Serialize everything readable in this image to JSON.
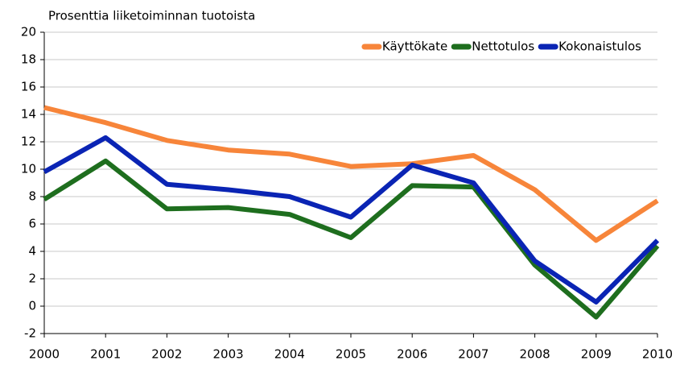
{
  "chart_data": {
    "type": "line",
    "title": "Prosenttia liiketoiminnan tuotoista",
    "categories": [
      "2000",
      "2001",
      "2002",
      "2003",
      "2004",
      "2005",
      "2006",
      "2007",
      "2008",
      "2009",
      "2010"
    ],
    "series": [
      {
        "name": "Käyttökate",
        "color": "#f7853a",
        "values": [
          14.5,
          13.4,
          12.1,
          11.4,
          11.1,
          10.2,
          10.4,
          11.0,
          8.5,
          4.8,
          7.7
        ]
      },
      {
        "name": "Nettotulos",
        "color": "#1e6e1e",
        "values": [
          7.8,
          10.6,
          7.1,
          7.2,
          6.7,
          5.0,
          8.8,
          8.7,
          3.0,
          -0.8,
          4.4
        ]
      },
      {
        "name": "Kokonaistulos",
        "color": "#0a24b4",
        "values": [
          9.8,
          12.3,
          8.9,
          8.5,
          8.0,
          6.5,
          10.3,
          9.0,
          3.3,
          0.3,
          4.8
        ]
      }
    ],
    "ylim": [
      -2,
      20
    ],
    "yticks": [
      -2,
      0,
      2,
      4,
      6,
      8,
      10,
      12,
      14,
      16,
      18,
      20
    ],
    "grid": true,
    "legend": "upper right"
  }
}
